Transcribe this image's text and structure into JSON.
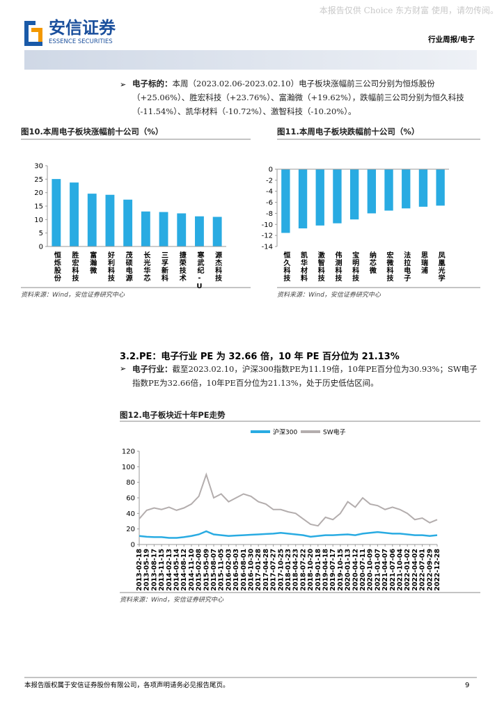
{
  "watermark": "本报告仅供 Choice 东方财富 使用，请勿传阅。",
  "header": {
    "logo_cn": "安信证券",
    "logo_en": "ESSENCE SECURITIES",
    "section": "行业周报/电子"
  },
  "para1": {
    "label": "电子标的：",
    "text": "本周（2023.02.06-2023.02.10）电子板块涨幅前三公司分别为恒烁股份（+25.06%）、胜宏科技（+23.76%）、富瀚微（+19.62%），跌幅前三公司分别为恒久科技（-11.54%）、凯华材料（-10.72%）、激智科技（-10.20%）。"
  },
  "section_heading": "3.2.PE：电子行业 PE 为 32.66 倍，10 年 PE 百分位为 21.13%",
  "para2": {
    "label": "电子行业：",
    "text": "截至2023.02.10，沪深300指数PE为11.19倍，10年PE百分位为30.93%；SW电子指数PE为32.66倍，10年PE百分位为21.13%，处于历史低估区间。"
  },
  "footer": {
    "text": "本报告版权属于安信证券股份有限公司，各项声明请务必见报告尾页。",
    "page": "9"
  },
  "chart_data": [
    {
      "type": "bar",
      "title": "图10.本周电子板块涨幅前十公司（%）",
      "source": "资料来源：Wind，安信证券研究中心",
      "categories": [
        "恒烁股份",
        "胜宏科技",
        "富瀚微",
        "好利科技",
        "茂硕电源",
        "长光华芯",
        "三孚新科",
        "捷荣技术",
        "寒武纪-U",
        "源杰科技"
      ],
      "values": [
        25.06,
        23.76,
        19.62,
        19.2,
        17.4,
        13.0,
        12.8,
        12.3,
        11.2,
        11.0
      ],
      "color": "#29abe2",
      "ylim": [
        0,
        30
      ],
      "yticks": [
        0,
        5,
        10,
        15,
        20,
        25,
        30
      ]
    },
    {
      "type": "bar",
      "title": "图11.本周电子板块跌幅前十公司（%）",
      "source": "资料来源：Wind，安信证券研究中心",
      "categories": [
        "恒久科技",
        "凯华材料",
        "激智科技",
        "伟测科技",
        "宝明科技",
        "纳芯微",
        "宏微科技",
        "法拉电子",
        "思瑞浦",
        "凤凰光学"
      ],
      "values": [
        -11.54,
        -10.72,
        -10.2,
        -9.8,
        -9.1,
        -8.0,
        -7.5,
        -7.1,
        -6.8,
        -6.6
      ],
      "color": "#29abe2",
      "ylim": [
        -14,
        0
      ],
      "yticks": [
        0,
        -2,
        -4,
        -6,
        -8,
        -10,
        -12,
        -14
      ]
    },
    {
      "type": "line",
      "title": "图12.电子板块近十年PE走势",
      "source": "资料来源：Wind，安信证券研究中心",
      "x": [
        "2013-02-18",
        "2013-05-19",
        "2013-08-17",
        "2013-11-15",
        "2014-02-13",
        "2014-05-14",
        "2014-08-12",
        "2014-11-10",
        "2015-02-08",
        "2015-05-09",
        "2015-08-07",
        "2015-11-05",
        "2016-02-03",
        "2016-05-03",
        "2016-08-01",
        "2016-10-30",
        "2017-01-28",
        "2017-04-28",
        "2017-07-27",
        "2017-10-25",
        "2018-01-23",
        "2018-04-23",
        "2018-07-22",
        "2018-10-20",
        "2019-01-18",
        "2019-04-18",
        "2019-07-17",
        "2019-10-15",
        "2020-01-13",
        "2020-04-12",
        "2020-07-11",
        "2020-10-09",
        "2021-01-07",
        "2021-04-07",
        "2021-07-06",
        "2021-10-04",
        "2022-01-02",
        "2022-04-02",
        "2022-07-01",
        "2022-09-29",
        "2022-12-28"
      ],
      "series": [
        {
          "name": "沪深300",
          "color": "#29abe2",
          "values": [
            11,
            10,
            9.5,
            9.5,
            8.5,
            8.5,
            9.5,
            11,
            13,
            17,
            13,
            12,
            11,
            11.5,
            12,
            12.5,
            13,
            13.5,
            14,
            15,
            14,
            13,
            12,
            10,
            11,
            12,
            12,
            12.5,
            13,
            12,
            14,
            15,
            16,
            15,
            14,
            14,
            13,
            12,
            12,
            11,
            12
          ]
        },
        {
          "name": "SW电子",
          "color": "#b3adad",
          "values": [
            33,
            44,
            47,
            45,
            48,
            44,
            47,
            52,
            62,
            90,
            60,
            65,
            55,
            60,
            65,
            62,
            55,
            52,
            45,
            45,
            42,
            40,
            33,
            26,
            24,
            35,
            32,
            40,
            55,
            48,
            60,
            52,
            50,
            45,
            48,
            45,
            40,
            32,
            34,
            28,
            32
          ]
        }
      ],
      "ylim": [
        0,
        120
      ],
      "yticks": [
        0,
        20,
        40,
        60,
        80,
        100,
        120
      ],
      "legend": "top"
    }
  ]
}
